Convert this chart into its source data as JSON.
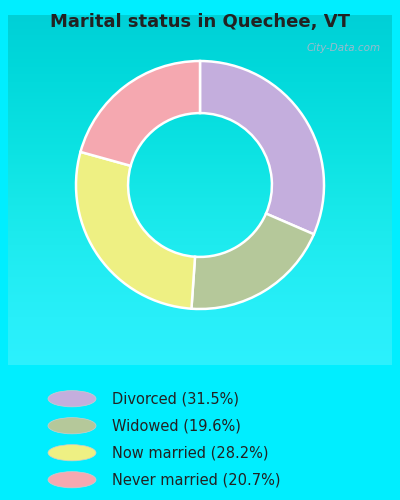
{
  "title": "Marital status in Quechee, VT",
  "title_fontsize": 13,
  "title_fontweight": "bold",
  "slices": [
    31.5,
    19.6,
    28.2,
    20.7
  ],
  "labels": [
    "Divorced (31.5%)",
    "Widowed (19.6%)",
    "Now married (28.2%)",
    "Never married (20.7%)"
  ],
  "colors": [
    "#c4aedd",
    "#b5c89a",
    "#eef083",
    "#f5a8b0"
  ],
  "outer_background": "#00eeff",
  "chart_bg_top": "#e8f5f0",
  "chart_bg_bottom": "#c8ede0",
  "donut_hole_color": "#d8f0e4",
  "start_angle": 90,
  "watermark": "City-Data.com",
  "legend_fontsize": 10.5,
  "fig_width": 4.0,
  "fig_height": 5.0
}
